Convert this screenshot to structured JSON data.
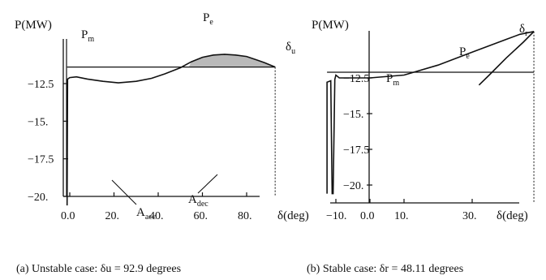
{
  "chart_data": [
    {
      "type": "line",
      "title": "",
      "caption": "(a) Unstable case: δu = 92.9 degrees",
      "ylabel": "P(MW)",
      "xlabel": "δ(deg)",
      "x_ticks": [
        "0.0",
        "20.",
        "40.",
        "60.",
        "80."
      ],
      "y_ticks": [
        "-12.5",
        "-15.",
        "-17.5",
        "-20."
      ],
      "xlim": [
        -3,
        92.9
      ],
      "ylim": [
        -20.6,
        -10.6
      ],
      "series": [
        {
          "name": "Pe",
          "x": [
            -1.2,
            -1.0,
            0,
            3,
            8,
            15,
            22,
            30,
            37,
            43,
            50,
            55,
            60,
            65,
            70,
            75,
            80,
            85,
            88,
            92.9
          ],
          "y": [
            -20.6,
            -12.2,
            -12.1,
            -12.05,
            -12.2,
            -12.35,
            -12.45,
            -12.35,
            -12.15,
            -11.85,
            -11.45,
            -11.05,
            -10.75,
            -10.6,
            -10.55,
            -10.6,
            -10.7,
            -10.95,
            -11.1,
            -11.4
          ]
        },
        {
          "name": "Pm",
          "x": [
            -1.2,
            92.9
          ],
          "y": [
            -11.4,
            -11.4
          ]
        }
      ],
      "labels": {
        "pm": "P",
        "pm_sub": "m",
        "pe": "P",
        "pe_sub": "e",
        "delta": "δ",
        "delta_sub": "u",
        "aacc": "A",
        "aacc_sub": "acc",
        "adec": "A",
        "adec_sub": "dec"
      }
    },
    {
      "type": "line",
      "title": "",
      "caption": "(b) Stable case: δr = 48.11 degrees",
      "ylabel": "P(MW)",
      "xlabel": "δ(deg)",
      "x_ticks": [
        "-10.",
        "0.0",
        "10.",
        "30."
      ],
      "y_ticks": [
        "-12.5",
        "-15.",
        "-17.5",
        "-20."
      ],
      "xlim": [
        -14.5,
        48.11
      ],
      "ylim": [
        -20.6,
        -9.0
      ],
      "series": [
        {
          "name": "Pe",
          "x": [
            -12.6,
            -12.6,
            -11.5,
            -11.1,
            -10.8,
            -10.3,
            -10.0,
            -9.0,
            0,
            10,
            20,
            30,
            40,
            44,
            48.11
          ],
          "y": [
            -20.6,
            -12.8,
            -12.7,
            -20.6,
            -20.6,
            -12.6,
            -12.3,
            -12.5,
            -12.5,
            -12.3,
            -11.6,
            -10.7,
            -9.8,
            -9.45,
            -9.25
          ]
        },
        {
          "name": "Pe (return)",
          "x": [
            48.11,
            45,
            40,
            35,
            32
          ],
          "y": [
            -9.25,
            -10.0,
            -11.1,
            -12.3,
            -13.0
          ]
        },
        {
          "name": "Pm",
          "x": [
            -12.6,
            48.11
          ],
          "y": [
            -12.1,
            -12.1
          ]
        }
      ],
      "labels": {
        "pm": "P",
        "pm_sub": "m",
        "pe": "P",
        "pe_sub": "e",
        "delta": "δ",
        "delta_sub": "r"
      }
    }
  ]
}
